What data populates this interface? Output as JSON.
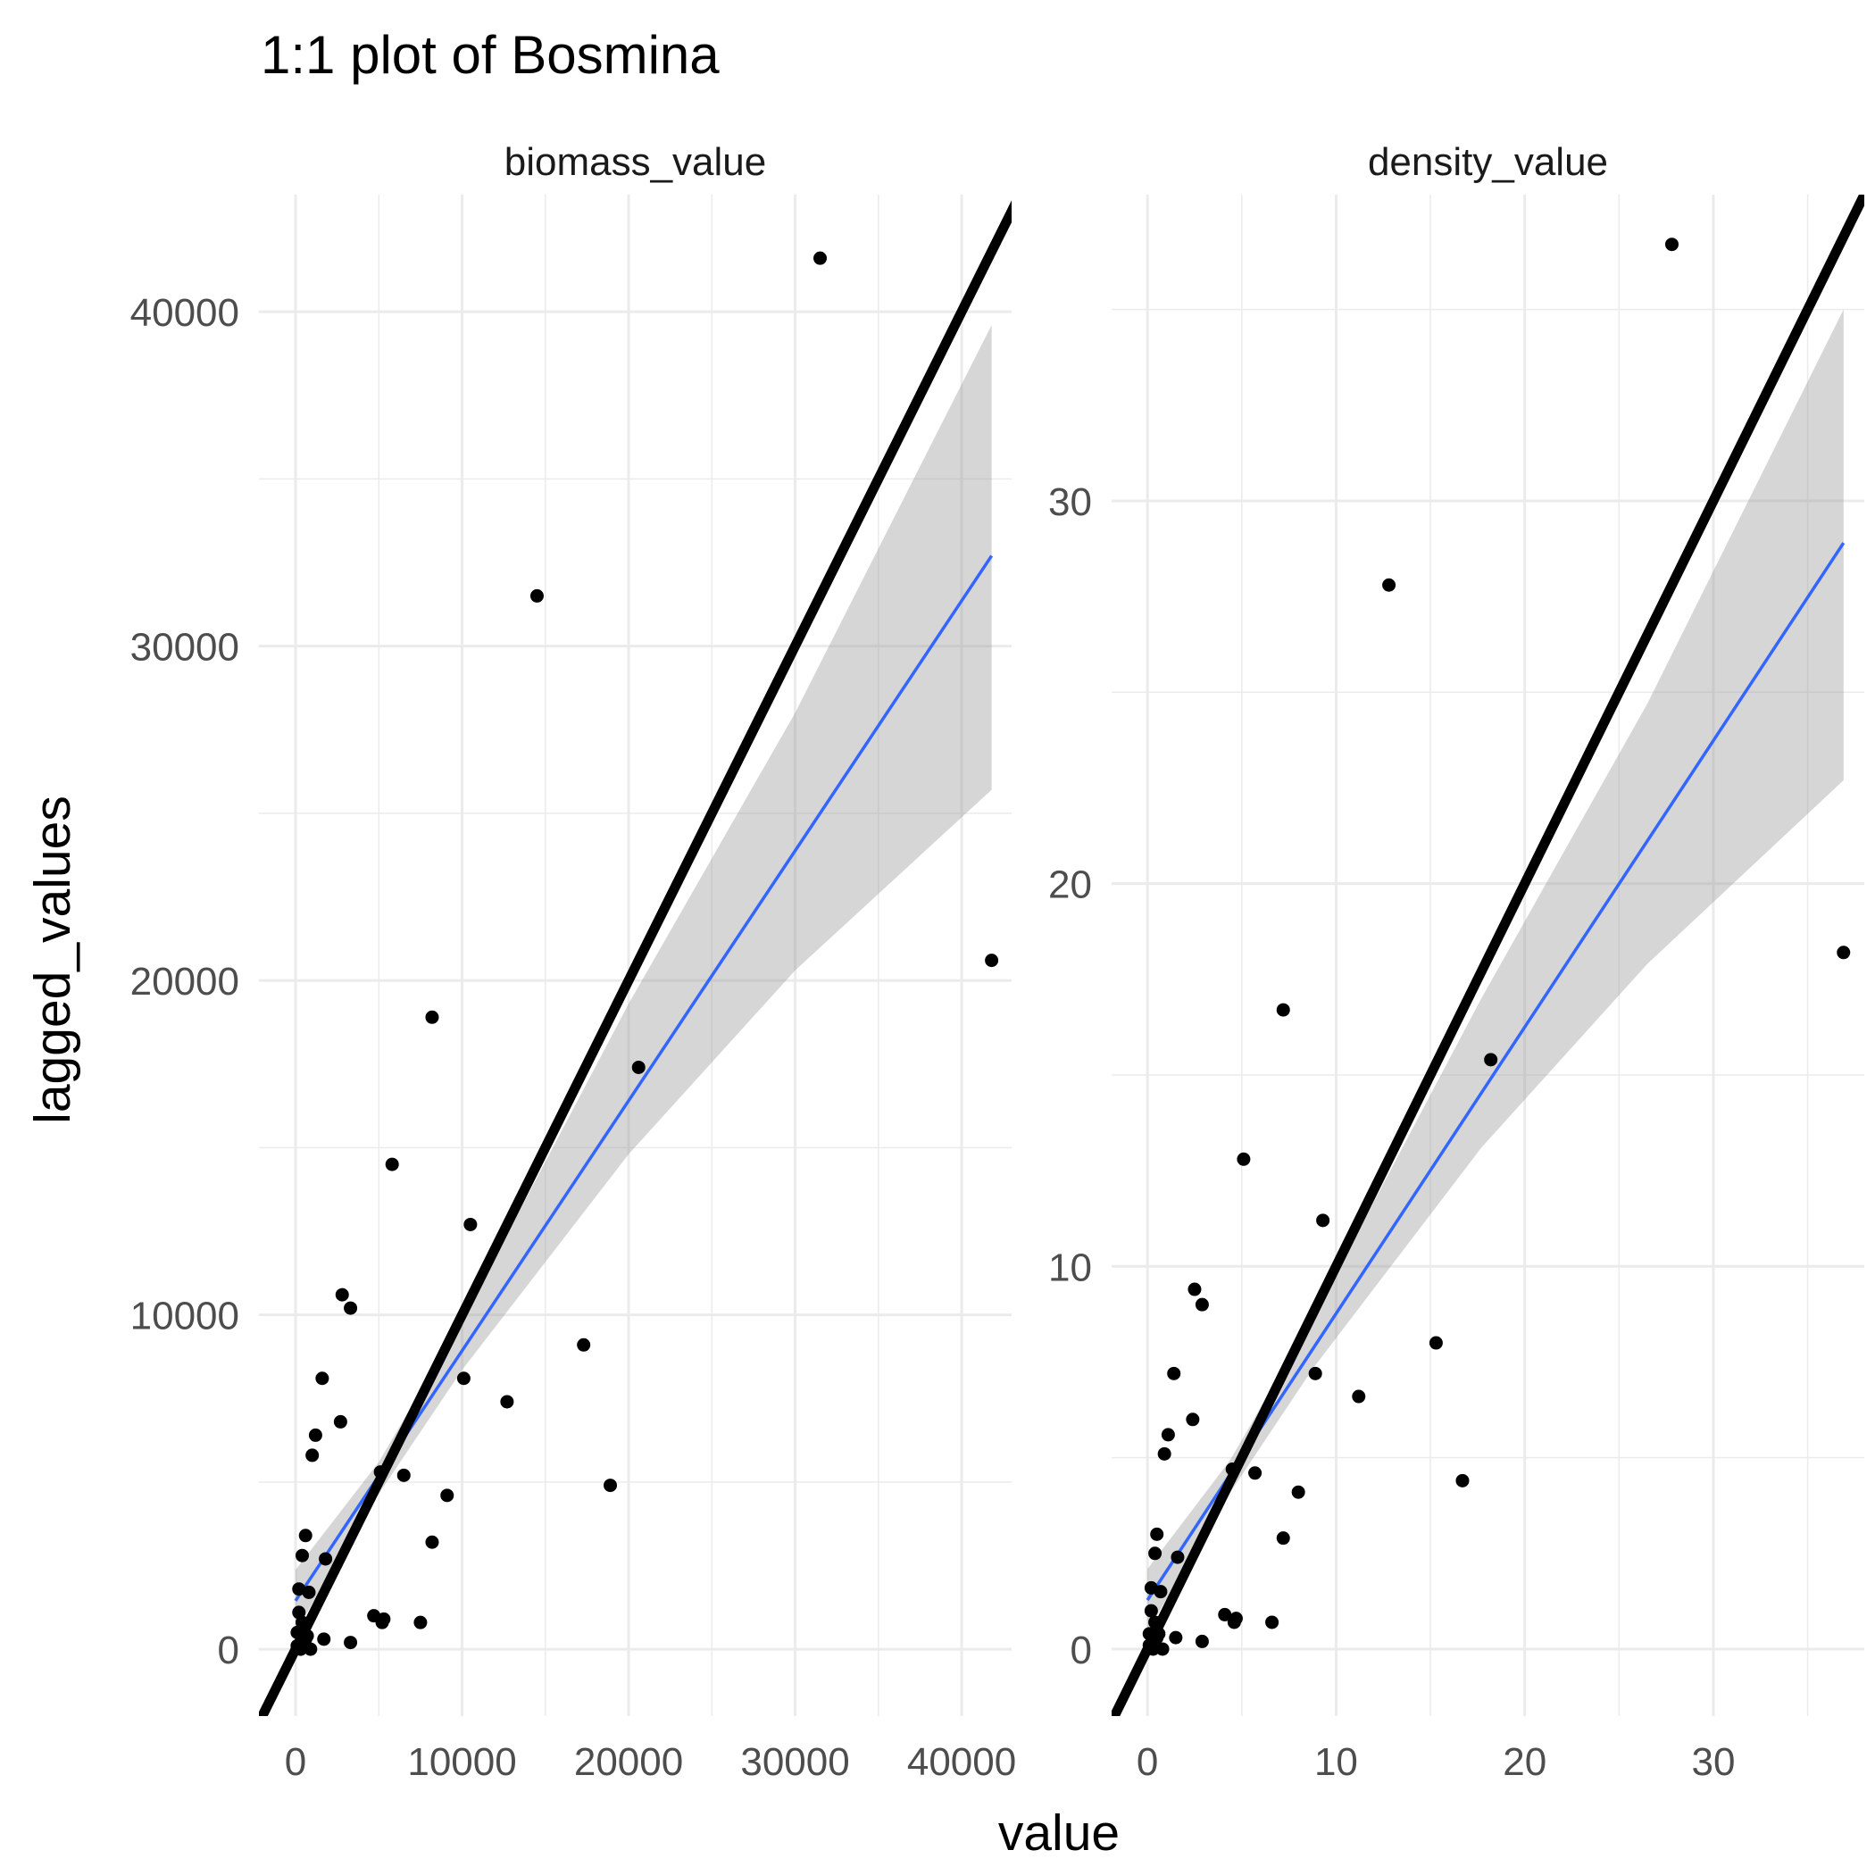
{
  "chart_data": {
    "type": "scatter",
    "title": "1:1 plot of Bosmina",
    "xlabel": "value",
    "ylabel": "lagged_values",
    "grid": true,
    "legend": "none",
    "colors": {
      "points": "#000000",
      "fit_line": "#3366FF",
      "confidence_band": "#999999",
      "identity_line": "#000000",
      "grid": "#EBEBEB"
    },
    "panels": [
      {
        "label": "biomass_value",
        "xlim": [
          -2200,
          43000
        ],
        "ylim": [
          -2000,
          43500
        ],
        "x_ticks": [
          0,
          10000,
          20000,
          30000,
          40000
        ],
        "x_tick_labels": [
          "0",
          "10000",
          "20000",
          "30000",
          "40000"
        ],
        "y_ticks": [
          0,
          10000,
          20000,
          30000,
          40000
        ],
        "y_tick_labels": [
          "0",
          "10000",
          "20000",
          "30000",
          "40000"
        ],
        "points": [
          [
            31500,
            41600
          ],
          [
            14500,
            31500
          ],
          [
            41800,
            20600
          ],
          [
            8200,
            18900
          ],
          [
            20600,
            17400
          ],
          [
            5800,
            14500
          ],
          [
            10500,
            12700
          ],
          [
            2800,
            10600
          ],
          [
            3300,
            10200
          ],
          [
            17300,
            9100
          ],
          [
            1600,
            8100
          ],
          [
            10100,
            8100
          ],
          [
            12700,
            7400
          ],
          [
            2700,
            6800
          ],
          [
            1200,
            6400
          ],
          [
            1000,
            5800
          ],
          [
            5100,
            5300
          ],
          [
            6500,
            5200
          ],
          [
            18900,
            4900
          ],
          [
            9100,
            4600
          ],
          [
            8200,
            3200
          ],
          [
            600,
            3400
          ],
          [
            400,
            2800
          ],
          [
            1800,
            2700
          ],
          [
            200,
            1800
          ],
          [
            800,
            1700
          ],
          [
            200,
            1100
          ],
          [
            400,
            800
          ],
          [
            4700,
            1000
          ],
          [
            5300,
            900
          ],
          [
            5200,
            800
          ],
          [
            7500,
            800
          ],
          [
            100,
            500
          ],
          [
            700,
            400
          ],
          [
            1700,
            300
          ],
          [
            3300,
            200
          ],
          [
            100,
            100
          ],
          [
            300,
            0
          ],
          [
            900,
            0
          ],
          [
            600,
            300
          ]
        ],
        "fit": {
          "x": [
            0,
            41800
          ],
          "y": [
            1450,
            32700
          ]
        },
        "band_lower": {
          "x": [
            0,
            5000,
            10000,
            20000,
            30000,
            41800
          ],
          "y": [
            530,
            4650,
            8350,
            14800,
            20300,
            25700
          ]
        },
        "band_upper": {
          "x": [
            0,
            5000,
            10000,
            20000,
            30000,
            41800
          ],
          "y": [
            2370,
            5600,
            9850,
            19300,
            28000,
            39600
          ]
        },
        "identity_line": {
          "x": [
            -3000,
            43500
          ],
          "y": [
            -3000,
            43500
          ]
        }
      },
      {
        "label": "density_value",
        "xlim": [
          -1.9,
          38
        ],
        "ylim": [
          -1.75,
          38
        ],
        "x_ticks": [
          0,
          10,
          20,
          30
        ],
        "x_tick_labels": [
          "0",
          "10",
          "20",
          "30"
        ],
        "y_ticks": [
          0,
          10,
          20,
          30
        ],
        "y_tick_labels": [
          "0",
          "10",
          "20",
          "30"
        ],
        "points": [
          [
            27.8,
            36.7
          ],
          [
            12.8,
            27.8
          ],
          [
            36.9,
            18.2
          ],
          [
            7.2,
            16.7
          ],
          [
            18.2,
            15.4
          ],
          [
            5.1,
            12.8
          ],
          [
            9.3,
            11.2
          ],
          [
            2.5,
            9.4
          ],
          [
            2.9,
            9.0
          ],
          [
            15.3,
            8.0
          ],
          [
            1.4,
            7.2
          ],
          [
            8.9,
            7.2
          ],
          [
            11.2,
            6.6
          ],
          [
            2.4,
            6.0
          ],
          [
            1.1,
            5.6
          ],
          [
            0.9,
            5.1
          ],
          [
            4.5,
            4.7
          ],
          [
            5.7,
            4.6
          ],
          [
            16.7,
            4.4
          ],
          [
            8.0,
            4.1
          ],
          [
            7.2,
            2.9
          ],
          [
            0.5,
            3.0
          ],
          [
            0.4,
            2.5
          ],
          [
            1.6,
            2.4
          ],
          [
            0.2,
            1.6
          ],
          [
            0.7,
            1.5
          ],
          [
            0.2,
            1.0
          ],
          [
            0.4,
            0.7
          ],
          [
            4.1,
            0.9
          ],
          [
            4.7,
            0.8
          ],
          [
            4.6,
            0.7
          ],
          [
            6.6,
            0.7
          ],
          [
            0.1,
            0.4
          ],
          [
            0.6,
            0.4
          ],
          [
            1.5,
            0.3
          ],
          [
            2.9,
            0.2
          ],
          [
            0.1,
            0.1
          ],
          [
            0.3,
            0.0
          ],
          [
            0.8,
            0.0
          ],
          [
            0.5,
            0.3
          ]
        ],
        "fit": {
          "x": [
            0,
            36.9
          ],
          "y": [
            1.28,
            28.9
          ]
        },
        "band_lower": {
          "x": [
            0,
            4.4,
            8.8,
            17.7,
            26.5,
            36.9
          ],
          "y": [
            0.47,
            4.1,
            7.35,
            13.1,
            17.9,
            22.7
          ]
        },
        "band_upper": {
          "x": [
            0,
            4.4,
            8.8,
            17.7,
            26.5,
            36.9
          ],
          "y": [
            2.09,
            4.95,
            8.7,
            17.0,
            24.7,
            35.0
          ]
        },
        "identity_line": {
          "x": [
            -3,
            38.5
          ],
          "y": [
            -3,
            38.5
          ]
        }
      }
    ]
  }
}
